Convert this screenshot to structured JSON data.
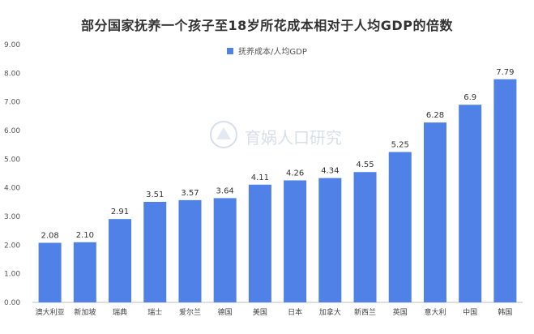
{
  "chart_data": {
    "type": "bar",
    "title": "部分国家抚养一个孩子至18岁所花成本相对于人均GDP的倍数",
    "xlabel": "",
    "ylabel": "",
    "ylim": [
      0,
      9
    ],
    "yticks": [
      "0.00",
      "1.00",
      "2.00",
      "3.00",
      "4.00",
      "5.00",
      "6.00",
      "7.00",
      "8.00",
      "9.00"
    ],
    "grid": false,
    "legend_position": "top-center",
    "categories": [
      "澳大利亚",
      "新加坡",
      "瑞典",
      "瑞士",
      "爱尔兰",
      "德国",
      "美国",
      "日本",
      "加拿大",
      "新西兰",
      "英国",
      "意大利",
      "中国",
      "韩国"
    ],
    "series": [
      {
        "name": "抚养成本/人均GDP",
        "values": [
          2.08,
          2.1,
          2.91,
          3.51,
          3.57,
          3.64,
          4.11,
          4.26,
          4.34,
          4.55,
          5.25,
          6.28,
          6.9,
          7.79
        ],
        "value_labels": [
          "2.08",
          "2.10",
          "2.91",
          "3.51",
          "3.57",
          "3.64",
          "4.11",
          "4.26",
          "4.34",
          "4.55",
          "5.25",
          "6.28",
          "6.9",
          "7.79"
        ],
        "color": "#4f81e6"
      }
    ]
  },
  "watermark": {
    "text": "育娲人口研究",
    "icon": "yuwa-logo-icon",
    "color": "#8fa6c6"
  }
}
